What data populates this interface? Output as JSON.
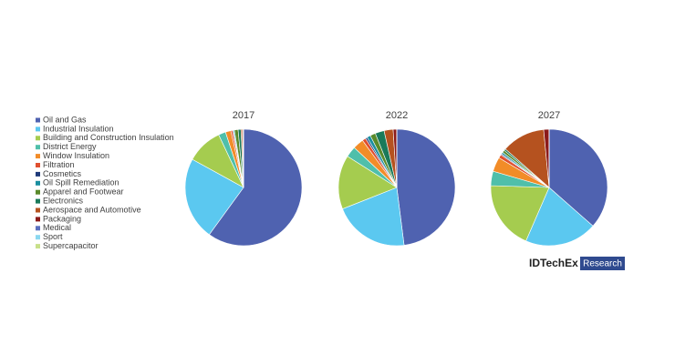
{
  "chart_data": {
    "type": "pie",
    "categories": [
      "Oil and Gas",
      "Industrial Insulation",
      "Building and Construction Insulation",
      "District Energy",
      "Window Insulation",
      "Filtration",
      "Cosmetics",
      "Oil Spill Remediation",
      "Apparel and Footwear",
      "Electronics",
      "Aerospace and Automotive",
      "Packaging",
      "Medical",
      "Sport",
      "Supercapacitor"
    ],
    "colors": [
      "#4f62b0",
      "#5bc8f0",
      "#a5cc4f",
      "#4fbfaa",
      "#f28c28",
      "#e0502f",
      "#1f3a7a",
      "#1a8fa0",
      "#5a8a2a",
      "#1a7a5a",
      "#b5521f",
      "#8b1a1a",
      "#5a70c0",
      "#8ad8f0",
      "#c8e08a"
    ],
    "series": [
      {
        "name": "2017",
        "values": [
          60,
          23,
          10,
          2,
          1.5,
          0.5,
          0.2,
          0.3,
          1,
          0.8,
          0.4,
          0.2,
          0.05,
          0.03,
          0.02
        ]
      },
      {
        "name": "2022",
        "values": [
          48,
          21,
          15,
          3,
          3,
          1,
          0.5,
          1,
          1.5,
          2.5,
          2.5,
          1,
          0,
          0,
          0
        ]
      },
      {
        "name": "2027",
        "values": [
          36.5,
          20,
          19,
          4,
          4,
          1,
          0.3,
          0.5,
          0.7,
          0.5,
          12,
          1.5,
          0,
          0,
          0
        ]
      }
    ]
  },
  "logo": {
    "brand": "IDTechEx",
    "tag": "Research"
  }
}
